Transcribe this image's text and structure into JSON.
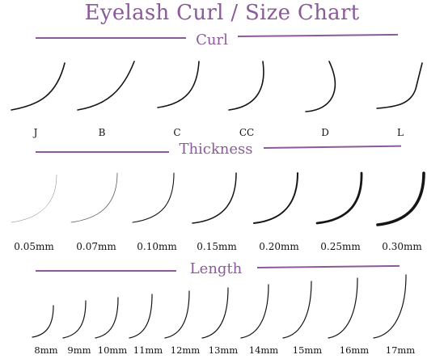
{
  "title": "Eyelash Curl / Size Chart",
  "colors": {
    "accent": "#8a5a99",
    "lash": "#151515",
    "caption": "#111111"
  },
  "sections": {
    "curl": {
      "heading": "Curl",
      "items": [
        "J",
        "B",
        "C",
        "CC",
        "D",
        "L"
      ]
    },
    "thickness": {
      "heading": "Thickness",
      "items": [
        "0.05mm",
        "0.07mm",
        "0.10mm",
        "0.15mm",
        "0.20mm",
        "0.25mm",
        "0.30mm"
      ],
      "thickness_values_mm": [
        0.05,
        0.07,
        0.1,
        0.15,
        0.2,
        0.25,
        0.3
      ]
    },
    "length": {
      "heading": "Length",
      "items": [
        "8mm",
        "9mm",
        "10mm",
        "11mm",
        "12mm",
        "13mm",
        "14mm",
        "15mm",
        "16mm",
        "17mm"
      ],
      "length_values_mm": [
        8,
        9,
        10,
        11,
        12,
        13,
        14,
        15,
        16,
        17
      ]
    }
  }
}
